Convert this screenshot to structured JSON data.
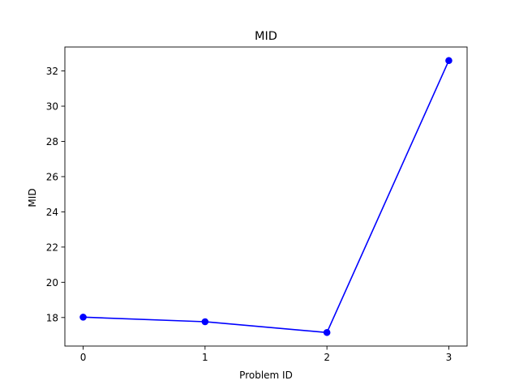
{
  "chart_data": {
    "type": "line",
    "title": "MID",
    "xlabel": "Problem ID",
    "ylabel": "MID",
    "x": [
      0,
      1,
      2,
      3
    ],
    "series": [
      {
        "values": [
          18.02,
          17.76,
          17.15,
          32.59
        ],
        "color": "#0000ff",
        "marker": "circle"
      }
    ],
    "xticks": [
      "0",
      "1",
      "2",
      "3"
    ],
    "yticks": [
      "18",
      "20",
      "22",
      "24",
      "26",
      "28",
      "30",
      "32"
    ],
    "xlim": [
      -0.15,
      3.15
    ],
    "ylim": [
      16.38,
      33.36
    ],
    "grid": false
  }
}
